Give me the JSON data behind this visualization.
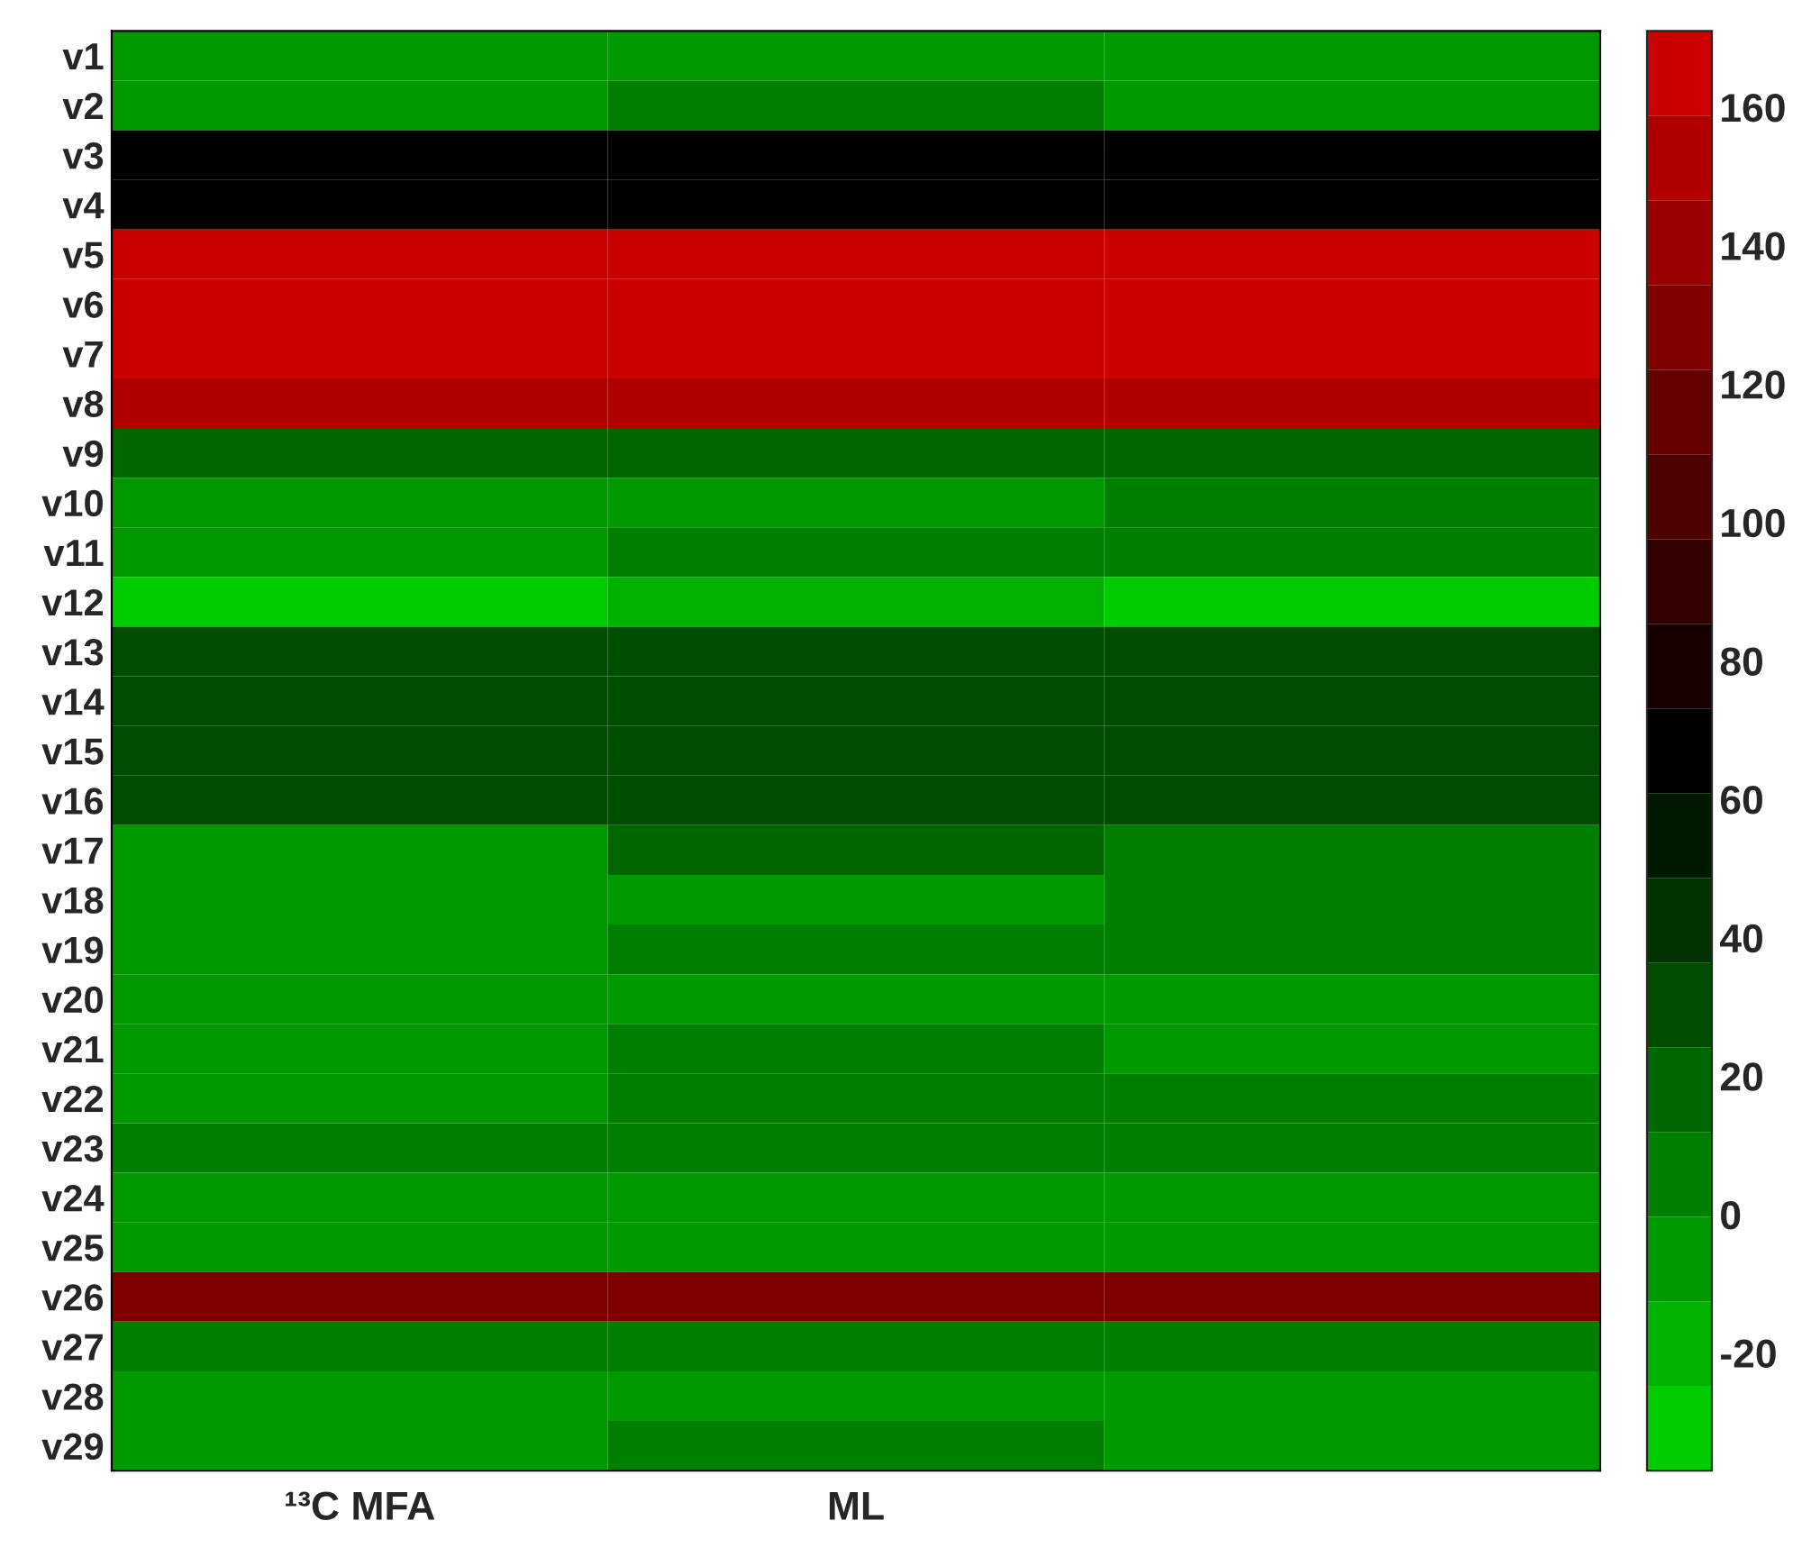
{
  "chart_data": {
    "type": "heatmap",
    "categories": [
      "¹³C MFA",
      "ML",
      null
    ],
    "y_categories": [
      "v1",
      "v2",
      "v3",
      "v4",
      "v5",
      "v6",
      "v7",
      "v8",
      "v9",
      "v10",
      "v11",
      "v12",
      "v13",
      "v14",
      "v15",
      "v16",
      "v17",
      "v18",
      "v19",
      "v20",
      "v21",
      "v22",
      "v23",
      "v24",
      "v25",
      "v26",
      "v27",
      "v28",
      "v29"
    ],
    "cells": [
      [
        -6,
        -6,
        -6
      ],
      [
        -6,
        6,
        -6
      ],
      [
        67,
        67,
        67
      ],
      [
        67,
        67,
        67
      ],
      [
        165,
        165,
        165
      ],
      [
        165,
        165,
        165
      ],
      [
        165,
        165,
        165
      ],
      [
        153,
        153,
        153
      ],
      [
        18,
        18,
        18
      ],
      [
        -6,
        -6,
        6
      ],
      [
        -6,
        6,
        6
      ],
      [
        -31,
        -19,
        -31
      ],
      [
        30,
        30,
        30
      ],
      [
        30,
        30,
        30
      ],
      [
        30,
        30,
        30
      ],
      [
        30,
        30,
        30
      ],
      [
        -6,
        18,
        6
      ],
      [
        -6,
        -6,
        6
      ],
      [
        -6,
        6,
        6
      ],
      [
        -6,
        -6,
        -6
      ],
      [
        -6,
        6,
        -6
      ],
      [
        -6,
        6,
        6
      ],
      [
        6,
        6,
        6
      ],
      [
        -6,
        -6,
        -6
      ],
      [
        -6,
        -6,
        -6
      ],
      [
        129,
        129,
        129
      ],
      [
        6,
        6,
        6
      ],
      [
        -6,
        -6,
        -6
      ],
      [
        -6,
        6,
        -6
      ]
    ],
    "colors": [
      "#00cc00",
      "#00b200",
      "#009900",
      "#007f00",
      "#006600",
      "#004c00",
      "#003300",
      "#001900",
      "#000000",
      "#190000",
      "#330000",
      "#4c0000",
      "#660000",
      "#7f0000",
      "#990000",
      "#b20000",
      "#cc0000"
    ],
    "clim": [
      -37,
      171
    ],
    "cticks": [
      -20,
      0,
      20,
      40,
      60,
      80,
      100,
      120,
      140,
      160
    ]
  }
}
